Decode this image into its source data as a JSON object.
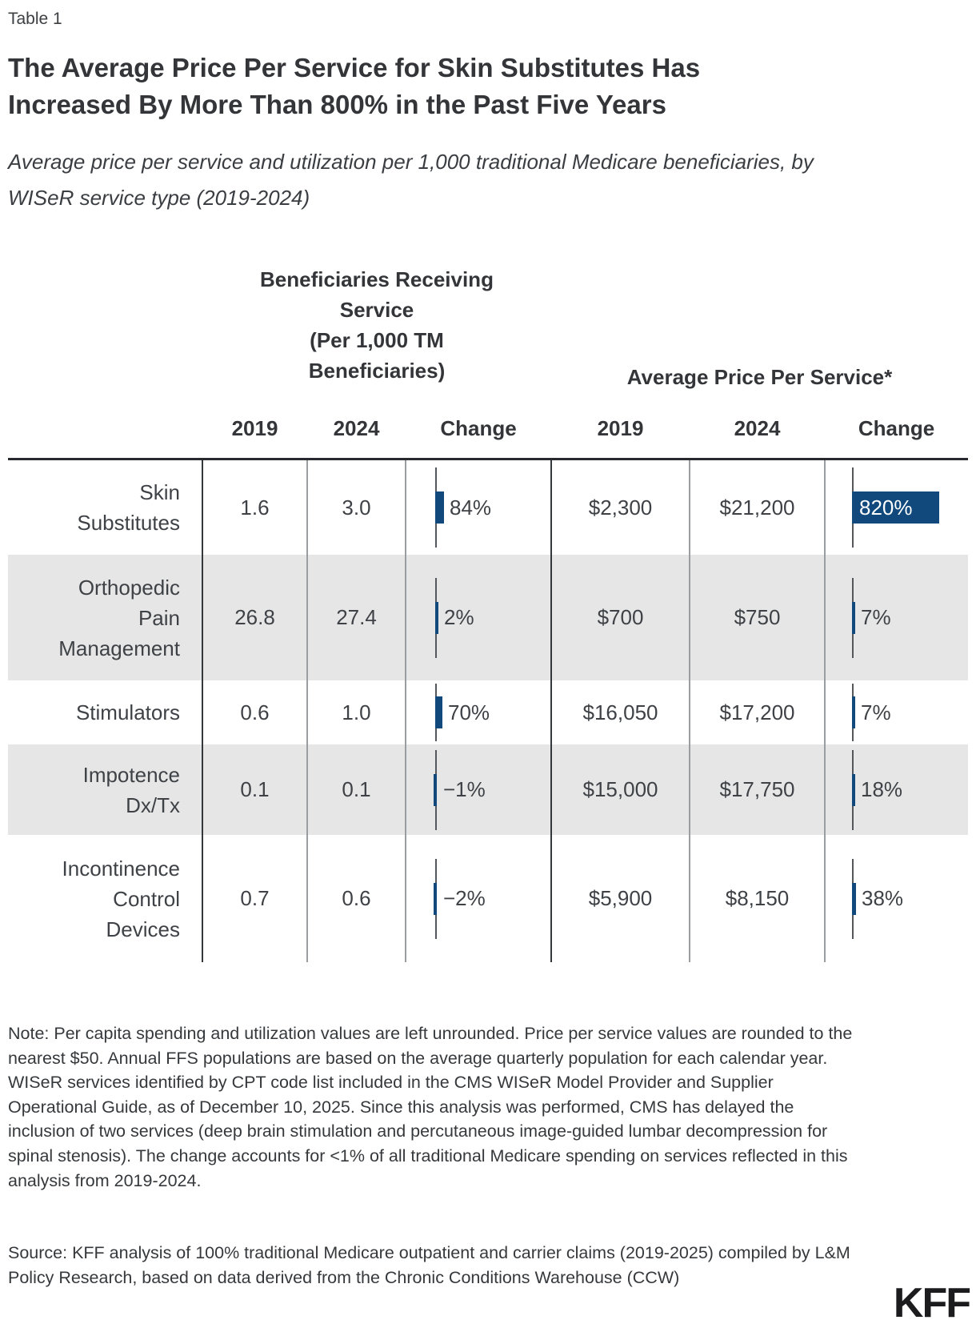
{
  "page": {
    "table_label": "Table 1",
    "title": "The Average Price Per Service for Skin Substitutes Has Increased By More Than 800% in the Past Five Years",
    "subtitle": "Average price per service and utilization per 1,000 traditional Medicare beneficiaries, by WISeR service type (2019-2024)",
    "note": "Note: Per capita spending and utilization values are left unrounded. Price per service values are rounded to the nearest $50. Annual FFS populations are based on the average quarterly population for each calendar year. WISeR services identified by CPT code list included in the CMS WISeR Model Provider and Supplier Operational Guide, as of December 10, 2025. Since this analysis was performed, CMS has delayed the inclusion of two services (deep brain stimulation and percutaneous image-guided lumbar decompression for spinal stenosis). The change accounts for <1% of all traditional Medicare spending on services reflected in this analysis from 2019-2024.",
    "source": "Source: KFF analysis of 100% traditional Medicare outpatient and carrier claims (2019-2025) compiled by L&M Policy Research, based on data derived from the Chronic Conditions Warehouse (CCW)",
    "logo": "KFF"
  },
  "chart_data": {
    "type": "table",
    "title": "The Average Price Per Service for Skin Substitutes Has Increased By More Than 800% in the Past Five Years",
    "column_groups": [
      {
        "label": "Beneficiaries Receiving Service (Per 1,000 TM Beneficiaries)",
        "label_lines": [
          "Beneficiaries Receiving",
          "Service",
          "(Per 1,000 TM",
          "Beneficiaries)"
        ],
        "columns": [
          "2019",
          "2024",
          "Change"
        ]
      },
      {
        "label": "Average Price Per Service*",
        "columns": [
          "2019",
          "2024",
          "Change"
        ]
      }
    ],
    "rows": [
      {
        "service": "Skin Substitutes",
        "service_lines": [
          "Skin",
          "Substitutes"
        ],
        "beneficiaries_2019": "1.6",
        "beneficiaries_2024": "3.0",
        "beneficiaries_change_pct": 84,
        "beneficiaries_change_label": "84%",
        "price_2019": "$2,300",
        "price_2024": "$21,200",
        "price_change_pct": 820,
        "price_change_label": "820%"
      },
      {
        "service": "Orthopedic Pain Management",
        "service_lines": [
          "Orthopedic",
          "Pain",
          "Management"
        ],
        "beneficiaries_2019": "26.8",
        "beneficiaries_2024": "27.4",
        "beneficiaries_change_pct": 2,
        "beneficiaries_change_label": "2%",
        "price_2019": "$700",
        "price_2024": "$750",
        "price_change_pct": 7,
        "price_change_label": "7%"
      },
      {
        "service": "Stimulators",
        "service_lines": [
          "Stimulators"
        ],
        "beneficiaries_2019": "0.6",
        "beneficiaries_2024": "1.0",
        "beneficiaries_change_pct": 70,
        "beneficiaries_change_label": "70%",
        "price_2019": "$16,050",
        "price_2024": "$17,200",
        "price_change_pct": 7,
        "price_change_label": "7%"
      },
      {
        "service": "Impotence Dx/Tx",
        "service_lines": [
          "Impotence",
          "Dx/Tx"
        ],
        "beneficiaries_2019": "0.1",
        "beneficiaries_2024": "0.1",
        "beneficiaries_change_pct": -1,
        "beneficiaries_change_label": "−1%",
        "price_2019": "$15,000",
        "price_2024": "$17,750",
        "price_change_pct": 18,
        "price_change_label": "18%"
      },
      {
        "service": "Incontinence Control Devices",
        "service_lines": [
          "Incontinence",
          "Control",
          "Devices"
        ],
        "beneficiaries_2019": "0.7",
        "beneficiaries_2024": "0.6",
        "beneficiaries_change_pct": -2,
        "beneficiaries_change_label": "−2%",
        "price_2019": "$5,900",
        "price_2024": "$8,150",
        "price_change_pct": 38,
        "price_change_label": "38%"
      }
    ]
  },
  "colors": {
    "bar_blue": "#11497d",
    "alt_row": "#e6e6e6",
    "axis_line": "#54585c",
    "divider_dark": "#34383b",
    "divider_light": "#9b9ea0"
  }
}
